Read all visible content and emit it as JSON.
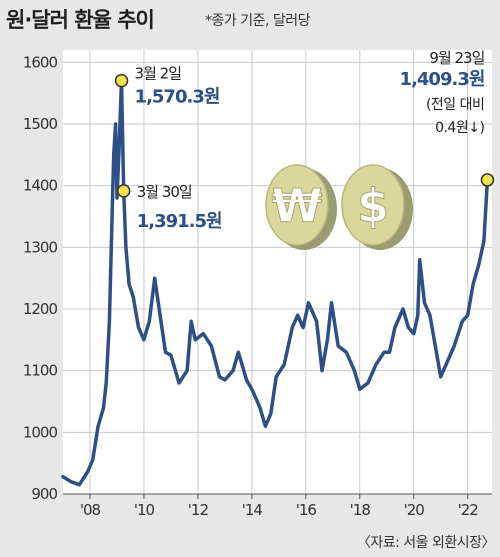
{
  "chart_data": {
    "type": "line",
    "title": "원·달러 환율 추이",
    "subtitle": "*종가 기준, 달러당",
    "source": "〈자료: 서울 외환시장〉",
    "ylim": [
      900,
      1620
    ],
    "yticks": [
      900,
      1000,
      1100,
      1200,
      1300,
      1400,
      1500,
      1600
    ],
    "xlim": [
      2007.0,
      2022.9
    ],
    "xticks": [
      {
        "year": 2008,
        "label": "'08"
      },
      {
        "year": 2010,
        "label": "'10"
      },
      {
        "year": 2012,
        "label": "'12"
      },
      {
        "year": 2014,
        "label": "'14"
      },
      {
        "year": 2016,
        "label": "'16"
      },
      {
        "year": 2018,
        "label": "'18"
      },
      {
        "year": 2020,
        "label": "'20"
      },
      {
        "year": 2022,
        "label": "'22"
      }
    ],
    "grid": true,
    "line_color": "#2d4f86",
    "series": [
      {
        "x": [
          2007.0,
          2007.3,
          2007.6,
          2007.9,
          2008.1,
          2008.3,
          2008.5,
          2008.6,
          2008.72,
          2008.8,
          2008.88,
          2008.95,
          2009.0,
          2009.08,
          2009.17,
          2009.25,
          2009.33,
          2009.45,
          2009.6,
          2009.8,
          2010.0,
          2010.2,
          2010.4,
          2010.6,
          2010.8,
          2011.0,
          2011.3,
          2011.6,
          2011.75,
          2011.9,
          2012.2,
          2012.5,
          2012.8,
          2013.0,
          2013.3,
          2013.5,
          2013.8,
          2014.0,
          2014.3,
          2014.5,
          2014.7,
          2014.9,
          2015.2,
          2015.5,
          2015.7,
          2015.9,
          2016.1,
          2016.4,
          2016.6,
          2016.8,
          2016.95,
          2017.2,
          2017.5,
          2017.8,
          2018.0,
          2018.3,
          2018.6,
          2018.9,
          2019.1,
          2019.3,
          2019.6,
          2019.8,
          2020.0,
          2020.15,
          2020.22,
          2020.4,
          2020.6,
          2020.8,
          2021.0,
          2021.2,
          2021.5,
          2021.8,
          2022.0,
          2022.2,
          2022.4,
          2022.6,
          2022.73
        ],
        "y": [
          928,
          920,
          915,
          935,
          955,
          1010,
          1040,
          1080,
          1180,
          1320,
          1450,
          1500,
          1380,
          1460,
          1570.3,
          1391.5,
          1300,
          1240,
          1220,
          1170,
          1150,
          1180,
          1250,
          1190,
          1130,
          1125,
          1080,
          1100,
          1180,
          1150,
          1160,
          1140,
          1090,
          1085,
          1100,
          1130,
          1085,
          1070,
          1040,
          1010,
          1030,
          1090,
          1110,
          1170,
          1190,
          1170,
          1210,
          1180,
          1100,
          1150,
          1210,
          1140,
          1130,
          1100,
          1070,
          1080,
          1110,
          1130,
          1130,
          1170,
          1200,
          1170,
          1160,
          1190,
          1280,
          1210,
          1190,
          1140,
          1090,
          1110,
          1140,
          1180,
          1190,
          1240,
          1270,
          1310,
          1409.3
        ]
      }
    ],
    "annotations": [
      {
        "date": "3월 2일",
        "x": 2009.17,
        "y": 1570.3,
        "value": "1,570.3원"
      },
      {
        "date": "3월 30일",
        "x": 2009.25,
        "y": 1391.5,
        "value": "1,391.5원"
      },
      {
        "date": "9월 23일",
        "x": 2022.73,
        "y": 1409.3,
        "value": "1,409.3원",
        "note_line1": "(전일 대비",
        "note_line2": "0.4원↓)"
      }
    ],
    "coins": [
      {
        "symbol": "₩",
        "name": "won-coin-icon"
      },
      {
        "symbol": "$",
        "name": "dollar-coin-icon"
      }
    ]
  }
}
